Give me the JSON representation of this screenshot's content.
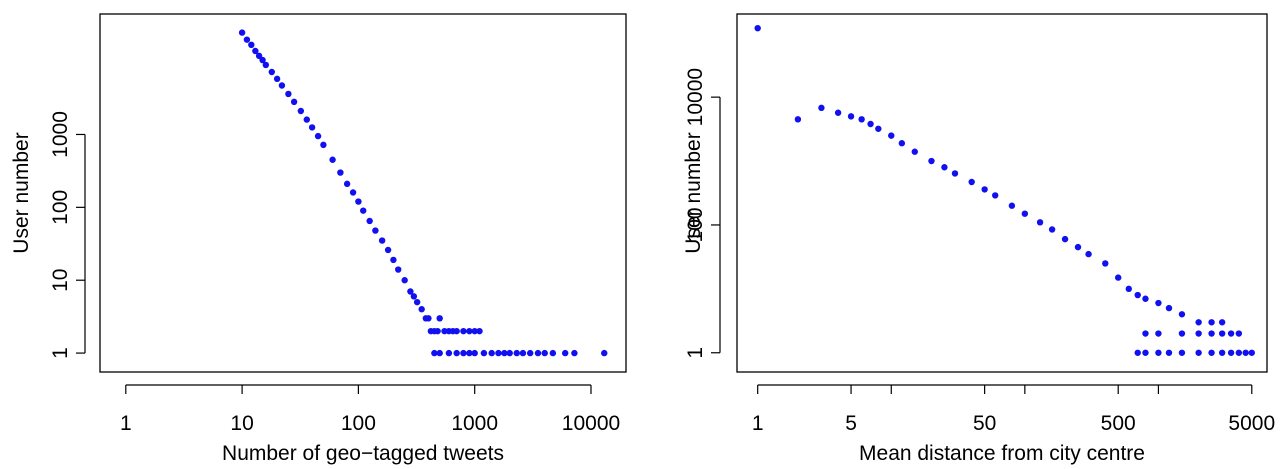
{
  "colors": {
    "points": "#1010f0",
    "axis": "#000000",
    "background": "#ffffff"
  },
  "chart_data": [
    {
      "type": "scatter",
      "xlabel": "Number of geo−tagged tweets",
      "ylabel": "User number",
      "x_scale": "log",
      "y_scale": "log",
      "xlim": [
        0.6,
        20000
      ],
      "ylim": [
        0.55,
        45000
      ],
      "x_ticks": [
        {
          "value": 1,
          "label": "1"
        },
        {
          "value": 10,
          "label": "10"
        },
        {
          "value": 100,
          "label": "100"
        },
        {
          "value": 1000,
          "label": "1000"
        },
        {
          "value": 10000,
          "label": "10000"
        }
      ],
      "y_ticks": [
        {
          "value": 1,
          "label": "1"
        },
        {
          "value": 10,
          "label": "10"
        },
        {
          "value": 100,
          "label": "100"
        },
        {
          "value": 1000,
          "label": "1000"
        }
      ],
      "grid": false,
      "points": [
        [
          10,
          25000
        ],
        [
          11,
          20000
        ],
        [
          12,
          17000
        ],
        [
          13,
          14000
        ],
        [
          14,
          12000
        ],
        [
          15,
          10500
        ],
        [
          16,
          9000
        ],
        [
          18,
          7200
        ],
        [
          20,
          5800
        ],
        [
          22,
          4700
        ],
        [
          25,
          3600
        ],
        [
          28,
          2800
        ],
        [
          32,
          2100
        ],
        [
          36,
          1600
        ],
        [
          40,
          1250
        ],
        [
          45,
          950
        ],
        [
          50,
          720
        ],
        [
          60,
          450
        ],
        [
          70,
          300
        ],
        [
          80,
          210
        ],
        [
          90,
          160
        ],
        [
          100,
          120
        ],
        [
          110,
          90
        ],
        [
          125,
          65
        ],
        [
          140,
          48
        ],
        [
          160,
          35
        ],
        [
          180,
          26
        ],
        [
          200,
          19
        ],
        [
          220,
          14
        ],
        [
          250,
          10
        ],
        [
          280,
          7
        ],
        [
          300,
          6
        ],
        [
          320,
          5
        ],
        [
          350,
          4
        ],
        [
          380,
          3
        ],
        [
          400,
          3
        ],
        [
          420,
          2
        ],
        [
          450,
          2
        ],
        [
          480,
          2
        ],
        [
          500,
          3
        ],
        [
          550,
          2
        ],
        [
          600,
          2
        ],
        [
          650,
          2
        ],
        [
          700,
          2
        ],
        [
          800,
          2
        ],
        [
          900,
          2
        ],
        [
          1000,
          2
        ],
        [
          1100,
          2
        ],
        [
          450,
          1
        ],
        [
          500,
          1
        ],
        [
          600,
          1
        ],
        [
          700,
          1
        ],
        [
          800,
          1
        ],
        [
          900,
          1
        ],
        [
          1000,
          1
        ],
        [
          1200,
          1
        ],
        [
          1400,
          1
        ],
        [
          1600,
          1
        ],
        [
          1800,
          1
        ],
        [
          2000,
          1
        ],
        [
          2300,
          1
        ],
        [
          2600,
          1
        ],
        [
          3000,
          1
        ],
        [
          3500,
          1
        ],
        [
          4000,
          1
        ],
        [
          4700,
          1
        ],
        [
          6000,
          1
        ],
        [
          7200,
          1
        ],
        [
          13000,
          1
        ]
      ]
    },
    {
      "type": "scatter",
      "xlabel": "Mean distance from city centre",
      "ylabel": "User number",
      "x_scale": "log",
      "y_scale": "log",
      "xlim": [
        0.7,
        6500
      ],
      "ylim": [
        0.5,
        200000
      ],
      "x_ticks": [
        {
          "value": 1,
          "label": "1"
        },
        {
          "value": 5,
          "label": "5"
        },
        {
          "value": 10,
          "label": ""
        },
        {
          "value": 50,
          "label": "50"
        },
        {
          "value": 100,
          "label": ""
        },
        {
          "value": 500,
          "label": "500"
        },
        {
          "value": 1000,
          "label": ""
        },
        {
          "value": 5000,
          "label": "5000"
        }
      ],
      "y_ticks": [
        {
          "value": 1,
          "label": "1"
        },
        {
          "value": 100,
          "label": "100"
        },
        {
          "value": 10000,
          "label": "10000"
        }
      ],
      "grid": false,
      "points": [
        [
          1,
          120000
        ],
        [
          2,
          4500
        ],
        [
          3,
          6800
        ],
        [
          4,
          5700
        ],
        [
          5,
          5000
        ],
        [
          6,
          4500
        ],
        [
          7,
          3800
        ],
        [
          8,
          3200
        ],
        [
          10,
          2500
        ],
        [
          12,
          1900
        ],
        [
          15,
          1400
        ],
        [
          20,
          1000
        ],
        [
          25,
          800
        ],
        [
          30,
          640
        ],
        [
          40,
          470
        ],
        [
          50,
          360
        ],
        [
          60,
          290
        ],
        [
          80,
          200
        ],
        [
          100,
          150
        ],
        [
          130,
          110
        ],
        [
          160,
          85
        ],
        [
          200,
          60
        ],
        [
          250,
          45
        ],
        [
          300,
          35
        ],
        [
          400,
          25
        ],
        [
          500,
          15
        ],
        [
          600,
          10
        ],
        [
          700,
          8
        ],
        [
          800,
          7
        ],
        [
          1000,
          6
        ],
        [
          1200,
          5
        ],
        [
          1500,
          4
        ],
        [
          2000,
          3
        ],
        [
          2500,
          3
        ],
        [
          3000,
          3
        ],
        [
          800,
          2
        ],
        [
          1000,
          2
        ],
        [
          1500,
          2
        ],
        [
          2000,
          2
        ],
        [
          2500,
          2
        ],
        [
          3000,
          2
        ],
        [
          3500,
          2
        ],
        [
          4000,
          2
        ],
        [
          700,
          1
        ],
        [
          800,
          1
        ],
        [
          1000,
          1
        ],
        [
          1200,
          1
        ],
        [
          1500,
          1
        ],
        [
          2000,
          1
        ],
        [
          2500,
          1
        ],
        [
          3000,
          1
        ],
        [
          3500,
          1
        ],
        [
          4000,
          1
        ],
        [
          4500,
          1
        ],
        [
          5000,
          1
        ]
      ]
    }
  ]
}
